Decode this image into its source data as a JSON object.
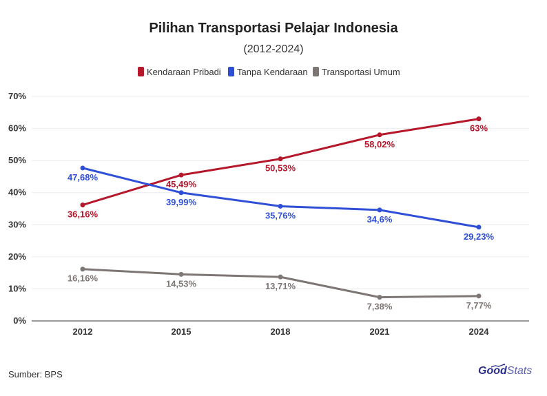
{
  "chart_data": {
    "type": "line",
    "title": "Pilihan Transportasi Pelajar Indonesia",
    "subtitle": "(2012-2024)",
    "categories": [
      "2012",
      "2015",
      "2018",
      "2021",
      "2024"
    ],
    "ylim": [
      0,
      70
    ],
    "yticks": [
      0,
      10,
      20,
      30,
      40,
      50,
      60,
      70
    ],
    "ytick_labels": [
      "0%",
      "10%",
      "20%",
      "30%",
      "40%",
      "50%",
      "60%",
      "70%"
    ],
    "grid": true,
    "legend_position": "top-center",
    "series": [
      {
        "name": "Kendaraan Pribadi",
        "color": "#b5172b",
        "values": [
          36.16,
          45.49,
          50.53,
          58.02,
          63
        ],
        "labels": [
          "36,16%",
          "45,49%",
          "50,53%",
          "58,02%",
          "63%"
        ],
        "label_pos": [
          "below",
          "below",
          "below",
          "below",
          "below"
        ]
      },
      {
        "name": "Tanpa Kendaraan",
        "color": "#2f4fd6",
        "values": [
          47.68,
          39.99,
          35.76,
          34.6,
          29.23
        ],
        "labels": [
          "47,68%",
          "39,99%",
          "35,76%",
          "34,6%",
          "29,23%"
        ],
        "label_pos": [
          "below",
          "below",
          "below",
          "below",
          "below"
        ]
      },
      {
        "name": "Transportasi Umum",
        "color": "#7d7674",
        "values": [
          16.16,
          14.53,
          13.71,
          7.38,
          7.77
        ],
        "labels": [
          "16,16%",
          "14,53%",
          "13,71%",
          "7,38%",
          "7,77%"
        ],
        "label_pos": [
          "below",
          "below",
          "below",
          "below",
          "below"
        ]
      }
    ]
  },
  "footer": {
    "source": "Sumber: BPS",
    "brand_bold": "Good",
    "brand_light": "Stats"
  }
}
